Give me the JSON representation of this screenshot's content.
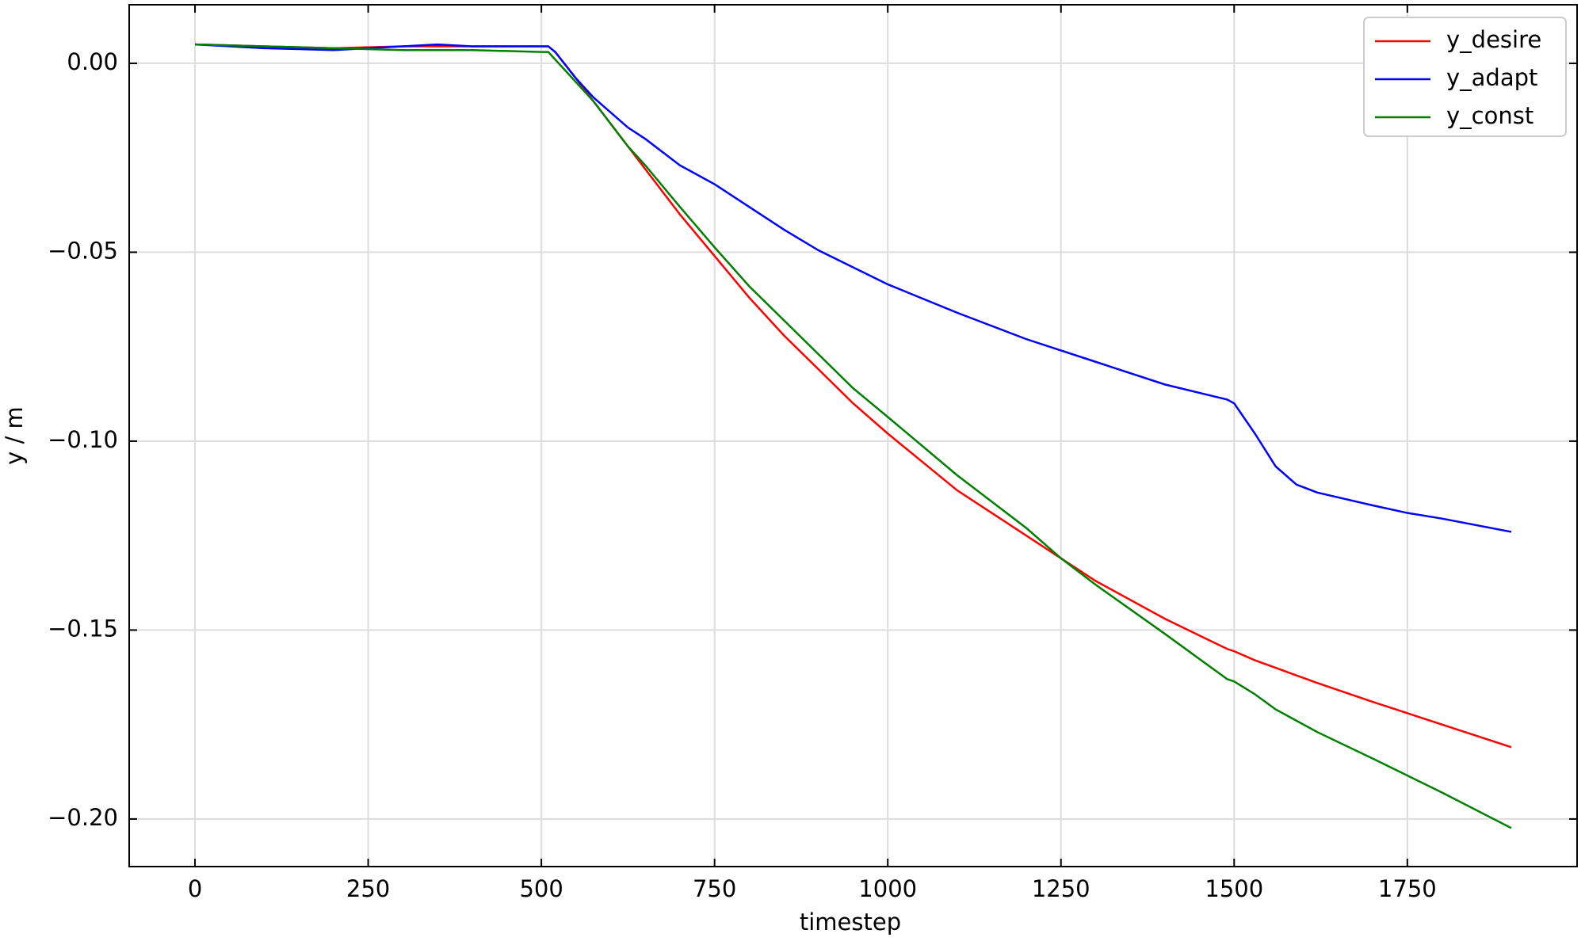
{
  "chart_data": {
    "type": "line",
    "xlabel": "timestep",
    "ylabel": "y / m",
    "x": [
      0,
      100,
      200,
      300,
      350,
      400,
      500,
      510,
      520,
      550,
      575,
      600,
      625,
      650,
      700,
      750,
      800,
      850,
      900,
      950,
      1000,
      1100,
      1200,
      1250,
      1300,
      1400,
      1490,
      1500,
      1530,
      1560,
      1590,
      1620,
      1700,
      1750,
      1800,
      1900
    ],
    "series": [
      {
        "name": "y_desire",
        "color": "#ff0000",
        "values": [
          0.005,
          0.0045,
          0.004,
          0.0045,
          0.0045,
          0.0045,
          0.0045,
          0.0045,
          0.003,
          -0.004,
          -0.01,
          -0.016,
          -0.022,
          -0.028,
          -0.04,
          -0.051,
          -0.062,
          -0.072,
          -0.081,
          -0.09,
          -0.098,
          -0.113,
          -0.125,
          -0.131,
          -0.137,
          -0.147,
          -0.155,
          -0.1556,
          -0.158,
          -0.16,
          -0.162,
          -0.164,
          -0.169,
          -0.172,
          -0.175,
          -0.181
        ]
      },
      {
        "name": "y_adapt",
        "color": "#0000ff",
        "values": [
          0.005,
          0.004,
          0.0035,
          0.0045,
          0.005,
          0.0045,
          0.0045,
          0.0045,
          0.003,
          -0.004,
          -0.009,
          -0.013,
          -0.017,
          -0.02,
          -0.027,
          -0.032,
          -0.038,
          -0.044,
          -0.0495,
          -0.054,
          -0.0585,
          -0.066,
          -0.073,
          -0.076,
          -0.079,
          -0.085,
          -0.089,
          -0.09,
          -0.098,
          -0.1067,
          -0.1115,
          -0.1136,
          -0.117,
          -0.119,
          -0.1205,
          -0.124
        ]
      },
      {
        "name": "y_const",
        "color": "#008000",
        "values": [
          0.005,
          0.0045,
          0.004,
          0.0035,
          0.0035,
          0.0035,
          0.003,
          0.003,
          0.001,
          -0.005,
          -0.01,
          -0.016,
          -0.022,
          -0.027,
          -0.038,
          -0.0487,
          -0.059,
          -0.068,
          -0.077,
          -0.086,
          -0.0936,
          -0.109,
          -0.123,
          -0.131,
          -0.138,
          -0.151,
          -0.163,
          -0.1636,
          -0.167,
          -0.171,
          -0.174,
          -0.177,
          -0.184,
          -0.1885,
          -0.193,
          -0.2024
        ]
      }
    ],
    "xlim": [
      -95,
      1995
    ],
    "xticks": [
      0,
      250,
      500,
      750,
      1000,
      1250,
      1500,
      1750
    ],
    "ylim": [
      -0.2126,
      0.0155
    ],
    "yticks": [
      {
        "value": 0,
        "label": "0.00"
      },
      {
        "value": -0.05,
        "label": "−0.05"
      },
      {
        "value": -0.1,
        "label": "−0.10"
      },
      {
        "value": -0.15,
        "label": "−0.15"
      },
      {
        "value": -0.2,
        "label": "−0.20"
      }
    ],
    "grid": true,
    "legend": "upper right"
  }
}
